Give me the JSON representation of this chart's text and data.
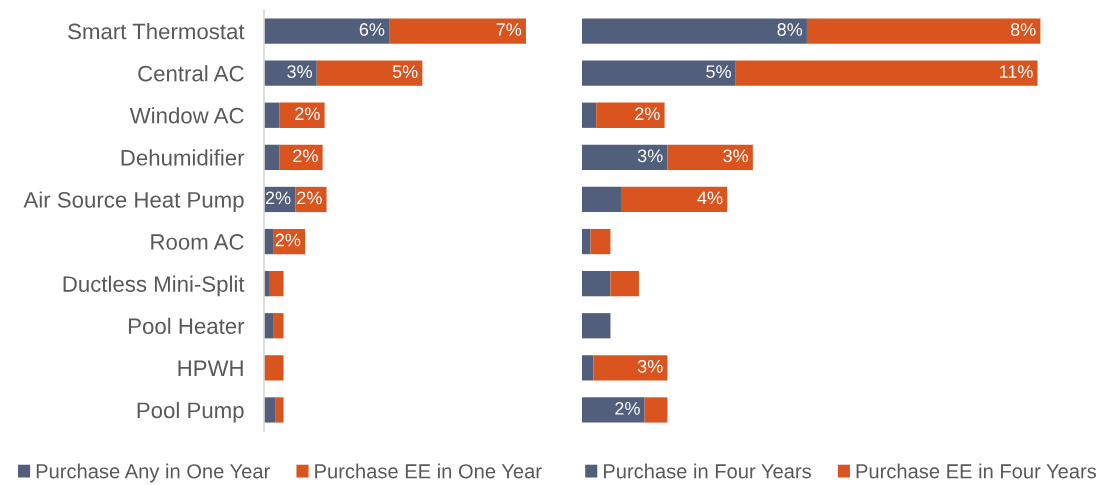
{
  "chart_data": [
    {
      "type": "bar",
      "orientation": "horizontal",
      "stacked": true,
      "legend": "bottom",
      "tick_labels": "y",
      "categories": [
        "Smart Thermostat",
        "Central AC",
        "Window AC",
        "Dehumidifier",
        "Air Source Heat Pump",
        "Room AC",
        "Ductless Mini-Split",
        "Pool Heater",
        "HPWH",
        "Pool Pump"
      ],
      "series": [
        {
          "name": "Purchase Any in One Year",
          "color": "#525f7c",
          "values": [
            6.4,
            2.7,
            0.8,
            0.8,
            1.6,
            0.5,
            0.3,
            0.5,
            null,
            0.6
          ],
          "value_labels": [
            "6%",
            "3%",
            null,
            null,
            "2%",
            null,
            null,
            null,
            null,
            null
          ]
        },
        {
          "name": "Purchase EE in One Year",
          "color": "#d9541e",
          "values": [
            7.0,
            5.4,
            2.3,
            2.2,
            1.6,
            1.6,
            0.7,
            0.5,
            1.0,
            0.4
          ],
          "value_labels": [
            "7%",
            "5%",
            "2%",
            "2%",
            "2%",
            "2%",
            null,
            null,
            null,
            null
          ]
        }
      ]
    },
    {
      "type": "bar",
      "orientation": "horizontal",
      "stacked": true,
      "legend": "bottom",
      "tick_labels": false,
      "categories": [
        null,
        null,
        null,
        null,
        null,
        null,
        null,
        null,
        null,
        null
      ],
      "series": [
        {
          "name": "Purchase in Four Years",
          "color": "#525f7c",
          "values": [
            7.9,
            5.4,
            0.5,
            3.0,
            1.4,
            0.3,
            1.0,
            1.0,
            0.4,
            2.2
          ],
          "value_labels": [
            "8%",
            "5%",
            null,
            "3%",
            null,
            null,
            null,
            null,
            null,
            "2%"
          ]
        },
        {
          "name": "Purchase EE in Four Years",
          "color": "#d9541e",
          "values": [
            8.2,
            10.6,
            2.4,
            3.0,
            3.7,
            0.7,
            1.0,
            null,
            2.6,
            0.8
          ],
          "value_labels": [
            "8%",
            "11%",
            "2%",
            "3%",
            "4%",
            null,
            null,
            null,
            "3%",
            null
          ]
        }
      ]
    }
  ]
}
